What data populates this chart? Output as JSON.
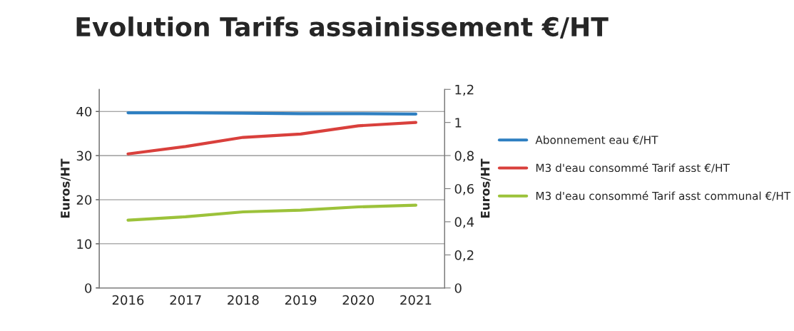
{
  "chart_data": {
    "type": "line",
    "title": "Evolution Tarifs assainissement €/HT",
    "ylabel": "Euros/HT",
    "y2label": "Euros/HT",
    "categories": [
      "2016",
      "2017",
      "2018",
      "2019",
      "2020",
      "2021"
    ],
    "series": [
      {
        "name": "Abonnement eau €/HT",
        "color": "#2e7fc1",
        "values": [
          39.7,
          39.7,
          39.6,
          39.5,
          39.5,
          39.4
        ]
      },
      {
        "name": "M3 d'eau consommé Tarif asst €/HT",
        "color": "#d9403c",
        "axis": "y2",
        "values": [
          0.81,
          0.855,
          0.91,
          0.93,
          0.98,
          1.0
        ]
      },
      {
        "name": "M3 d'eau consommé Tarif asst communal €/HT",
        "color": "#9cc23a",
        "axis": "y2",
        "values": [
          0.41,
          0.43,
          0.46,
          0.47,
          0.49,
          0.5
        ]
      }
    ],
    "ylim": [
      0,
      45
    ],
    "yticks": [
      0,
      10,
      20,
      30,
      40
    ],
    "y2lim": [
      0,
      1.2
    ],
    "y2ticks": [
      0,
      {
        "value": 0.2,
        "label": "0,2"
      },
      {
        "value": 0.4,
        "label": "0,4"
      },
      {
        "value": 0.6,
        "label": "0,6"
      },
      {
        "value": 0.8,
        "label": "0,8"
      },
      1,
      {
        "value": 1.2,
        "label": "1,2"
      }
    ],
    "grid": "y",
    "legend": "right",
    "marker": "none",
    "line_style": "solid"
  }
}
